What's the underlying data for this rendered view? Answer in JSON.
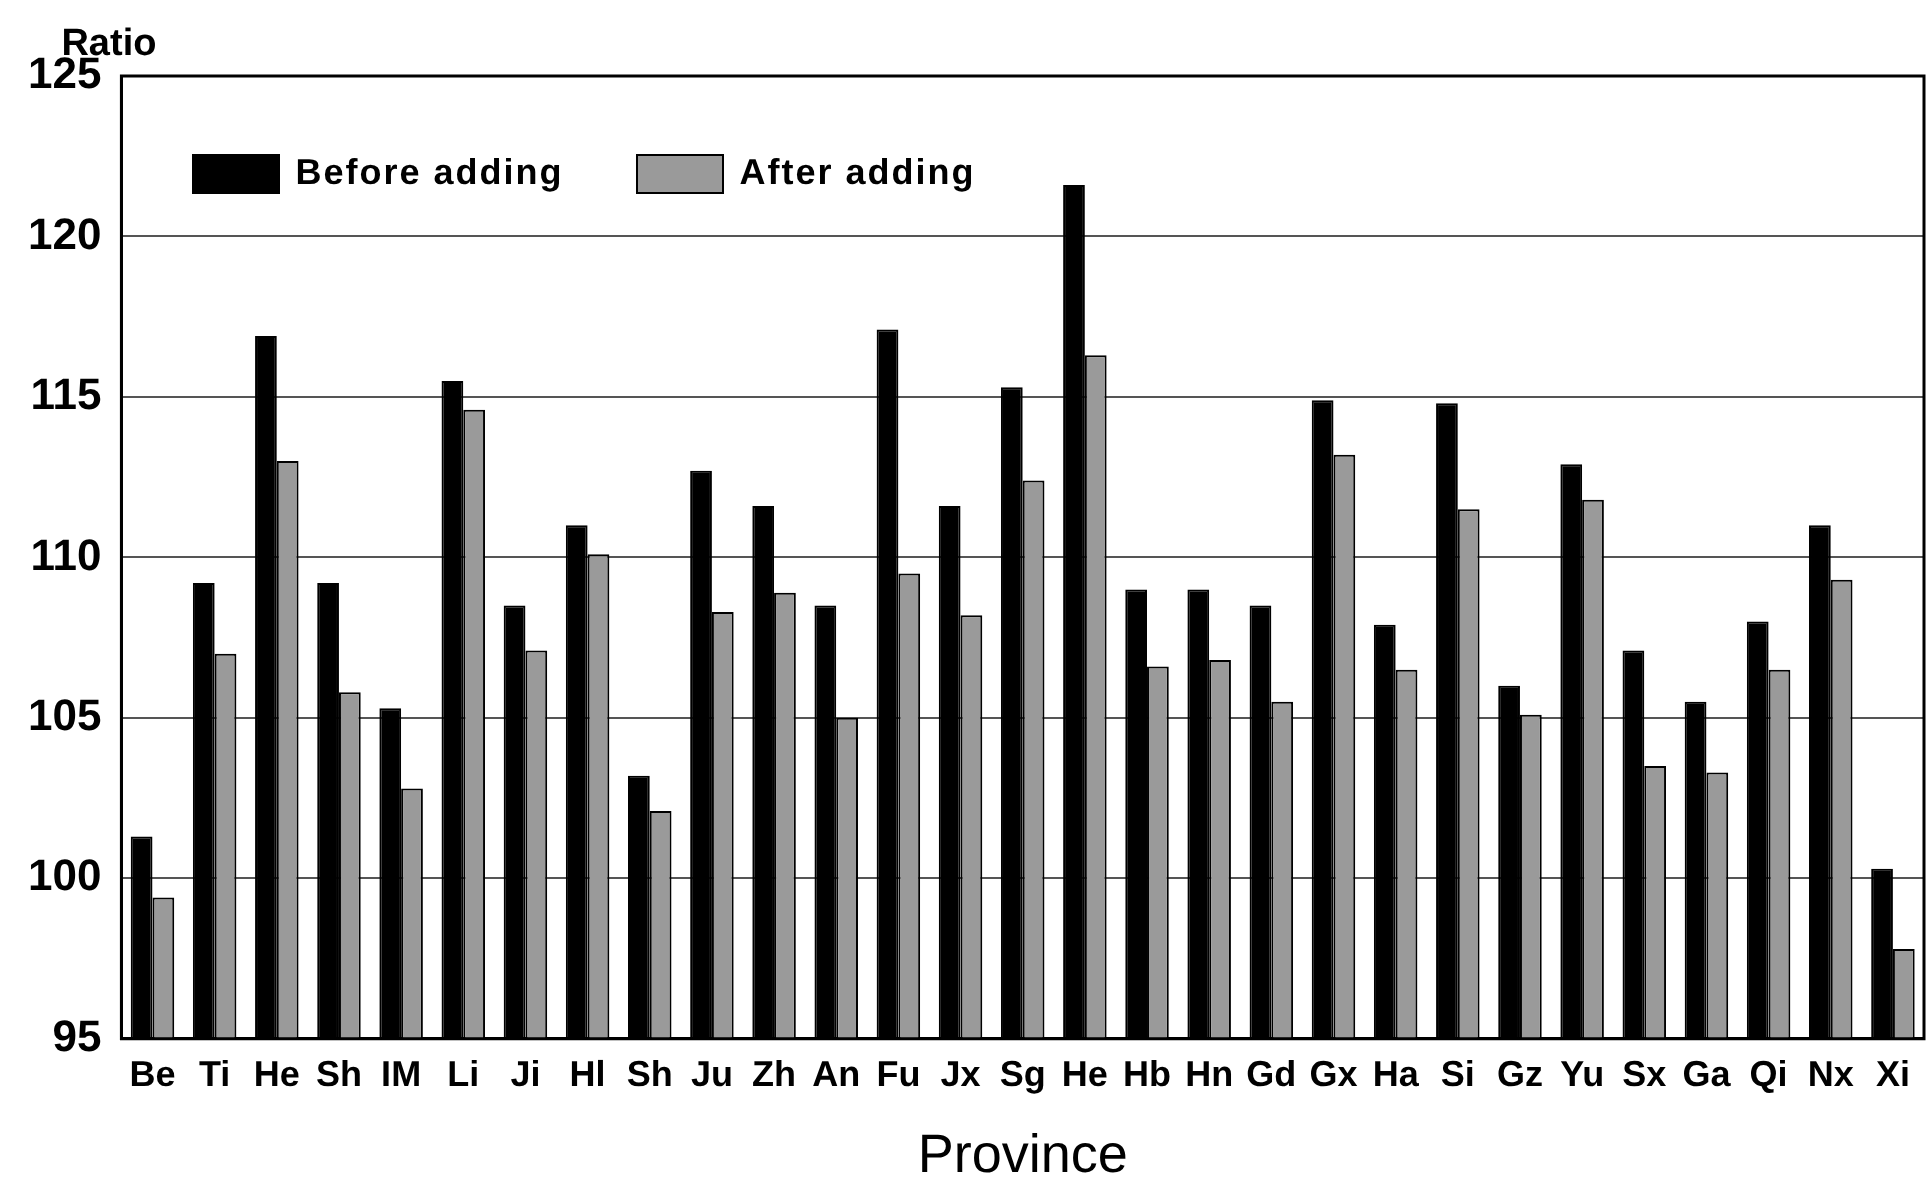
{
  "chart_data": {
    "type": "bar",
    "xlabel": "Province",
    "ylabel": "Ratio",
    "categories": [
      "Be",
      "Ti",
      "He",
      "Sh",
      "IM",
      "Li",
      "Ji",
      "Hl",
      "Sh",
      "Ju",
      "Zh",
      "An",
      "Fu",
      "Jx",
      "Sg",
      "He",
      "Hb",
      "Hn",
      "Gd",
      "Gx",
      "Ha",
      "Si",
      "Gz",
      "Yu",
      "Sx",
      "Ga",
      "Qi",
      "Nx",
      "Xi"
    ],
    "series": [
      {
        "name": "Before adding",
        "color": "#000000",
        "values": [
          101.3,
          109.2,
          116.9,
          109.2,
          105.3,
          115.5,
          108.5,
          111.0,
          103.2,
          112.7,
          111.6,
          108.5,
          117.1,
          111.6,
          115.3,
          121.6,
          109.0,
          109.0,
          108.5,
          114.9,
          107.9,
          114.8,
          106.0,
          112.9,
          107.1,
          105.5,
          108.0,
          111.0,
          100.3
        ]
      },
      {
        "name": "After adding",
        "color": "#9a9a9a",
        "values": [
          99.4,
          107.0,
          113.0,
          105.8,
          102.8,
          114.6,
          107.1,
          110.1,
          102.1,
          108.3,
          108.9,
          105.0,
          109.5,
          108.2,
          112.4,
          116.3,
          106.6,
          106.8,
          105.5,
          113.2,
          106.5,
          111.5,
          105.1,
          111.8,
          103.5,
          103.3,
          106.5,
          109.3,
          97.8
        ]
      }
    ],
    "ylim": [
      95,
      125
    ],
    "yticks": [
      95,
      100,
      105,
      110,
      115,
      120,
      125
    ],
    "grid": "y",
    "legend": "top left"
  }
}
